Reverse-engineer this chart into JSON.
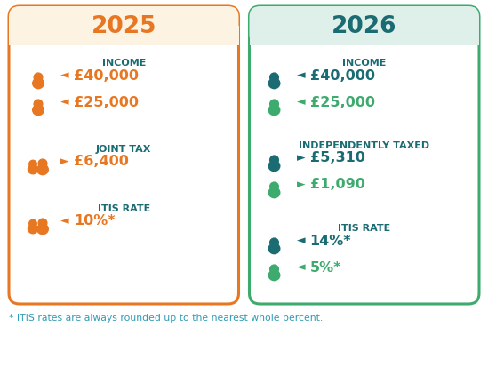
{
  "title_2025": "2025",
  "title_2026": "2026",
  "orange": "#E87722",
  "teal_dark": "#1A6B72",
  "teal_mid": "#2E8B8F",
  "teal_light": "#3DAA6E",
  "header_bg_2025": "#FDF3E3",
  "header_bg_2026": "#DFF0EB",
  "border_orange": "#E87722",
  "border_teal": "#3DAA6E",
  "label_color": "#1A6B72",
  "footnote_color": "#2E9BB5",
  "fig_w": 5.49,
  "fig_h": 4.14,
  "left": {
    "title": "2025",
    "title_color": "#E87722",
    "border": "#E87722",
    "header_bg": "#FDF3E3",
    "sections": [
      {
        "label": "INCOME",
        "rows": [
          {
            "double": false,
            "icon_color": "#E87722",
            "arrow": "◄",
            "text": "£40,000",
            "color": "#E87722"
          },
          {
            "double": false,
            "icon_color": "#E87722",
            "arrow": "◄",
            "text": "£25,000",
            "color": "#E87722"
          }
        ]
      },
      {
        "label": "JOINT TAX",
        "rows": [
          {
            "double": true,
            "icon_color": "#E87722",
            "arrow": "►",
            "text": "£6,400",
            "color": "#E87722"
          }
        ]
      },
      {
        "label": "ITIS RATE",
        "rows": [
          {
            "double": true,
            "icon_color": "#E87722",
            "arrow": "◄",
            "text": "10%*",
            "color": "#E87722"
          }
        ]
      }
    ]
  },
  "right": {
    "title": "2026",
    "title_color": "#1A6B72",
    "border": "#3DAA6E",
    "header_bg": "#DFF0EB",
    "sections": [
      {
        "label": "INCOME",
        "rows": [
          {
            "double": false,
            "icon_color": "#1A6B72",
            "arrow": "◄",
            "text": "£40,000",
            "color": "#1A6B72"
          },
          {
            "double": false,
            "icon_color": "#3DAA6E",
            "arrow": "◄",
            "text": "£25,000",
            "color": "#3DAA6E"
          }
        ]
      },
      {
        "label": "INDEPENDENTLY TAXED",
        "rows": [
          {
            "double": false,
            "icon_color": "#1A6B72",
            "arrow": "►",
            "text": "£5,310",
            "color": "#1A6B72"
          },
          {
            "double": false,
            "icon_color": "#3DAA6E",
            "arrow": "►",
            "text": "£1,090",
            "color": "#3DAA6E"
          }
        ]
      },
      {
        "label": "ITIS RATE",
        "rows": [
          {
            "double": false,
            "icon_color": "#1A6B72",
            "arrow": "◄",
            "text": "14%*",
            "color": "#1A6B72"
          },
          {
            "double": false,
            "icon_color": "#3DAA6E",
            "arrow": "◄",
            "text": "5%*",
            "color": "#3DAA6E"
          }
        ]
      }
    ]
  },
  "footnote": "* ITIS rates are always rounded up to the nearest whole percent."
}
